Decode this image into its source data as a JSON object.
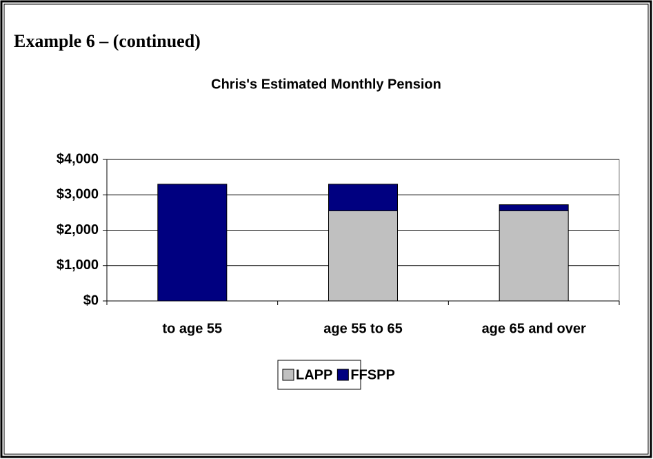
{
  "heading": "Example 6 – (continued)",
  "chart_data": {
    "type": "stacked_bar",
    "title": "Chris's Estimated Monthly Pension",
    "categories": [
      "to age 55",
      "age 55 to 65",
      "age 65 and over"
    ],
    "series": [
      {
        "name": "LAPP",
        "color": "#c0c0c0",
        "values": [
          0,
          2550,
          2550
        ]
      },
      {
        "name": "FFSPP",
        "color": "#000080",
        "values": [
          3300,
          750,
          170
        ]
      }
    ],
    "ylim": [
      0,
      4000
    ],
    "yticks": [
      {
        "value": 0,
        "label": "$0"
      },
      {
        "value": 1000,
        "label": "$1,000"
      },
      {
        "value": 2000,
        "label": "$2,000"
      },
      {
        "value": 3000,
        "label": "$3,000"
      },
      {
        "value": 4000,
        "label": "$4,000"
      }
    ],
    "grid": true,
    "legend": "bottom"
  }
}
